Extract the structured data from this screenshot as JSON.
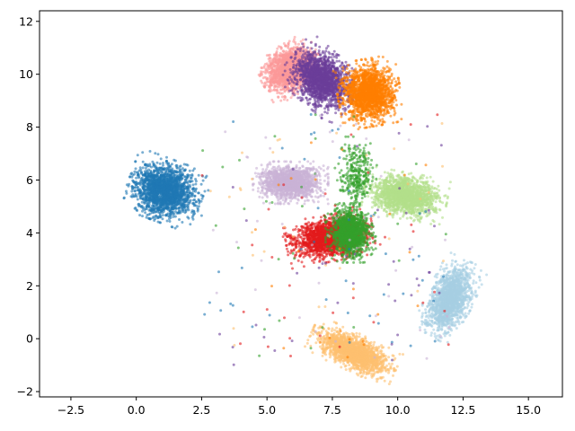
{
  "chart_data": {
    "type": "scatter",
    "title": "",
    "xlabel": "",
    "ylabel": "",
    "xlim": [
      -3.7,
      16.3
    ],
    "ylim": [
      -2.2,
      12.4
    ],
    "grid": false,
    "legend": "none",
    "x_ticks": [
      -2.5,
      0.0,
      2.5,
      5.0,
      7.5,
      10.0,
      12.5,
      15.0
    ],
    "x_tick_labels": [
      "−2.5",
      "0.0",
      "2.5",
      "5.0",
      "7.5",
      "10.0",
      "12.5",
      "15.0"
    ],
    "y_ticks": [
      -2,
      0,
      2,
      4,
      6,
      8,
      10,
      12
    ],
    "y_tick_labels": [
      "−2",
      "0",
      "2",
      "4",
      "6",
      "8",
      "10",
      "12"
    ],
    "clusters": [
      {
        "color": "#fb9a99",
        "center": [
          5.9,
          10.2
        ],
        "spread": [
          0.75,
          0.6
        ],
        "rotation": 30,
        "count": 1800
      },
      {
        "color": "#6a3d9a",
        "center": [
          7.1,
          9.8
        ],
        "spread": [
          0.7,
          0.9
        ],
        "rotation": 50,
        "count": 1800
      },
      {
        "color": "#ff7f00",
        "center": [
          8.9,
          9.3
        ],
        "spread": [
          0.75,
          0.8
        ],
        "rotation": 10,
        "count": 1800
      },
      {
        "color": "#cab2d6",
        "center": [
          5.9,
          5.9
        ],
        "spread": [
          0.9,
          0.5
        ],
        "rotation": 0,
        "count": 1500
      },
      {
        "color": "#b2df8a",
        "center": [
          10.3,
          5.4
        ],
        "spread": [
          1.0,
          0.55
        ],
        "rotation": -10,
        "count": 1700
      },
      {
        "color": "#1f78b4",
        "center": [
          1.1,
          5.6
        ],
        "spread": [
          0.9,
          0.75
        ],
        "rotation": -20,
        "count": 2000
      },
      {
        "color": "#e31a1c",
        "center": [
          7.4,
          3.8
        ],
        "spread": [
          1.05,
          0.55
        ],
        "rotation": 10,
        "count": 2000
      },
      {
        "color": "#33a02c",
        "center": [
          8.2,
          4.0
        ],
        "spread": [
          0.6,
          0.7
        ],
        "rotation": 0,
        "count": 1300
      },
      {
        "color": "#33a02c",
        "center": [
          8.4,
          6.2
        ],
        "spread": [
          0.5,
          0.9
        ],
        "rotation": 0,
        "count": 300
      },
      {
        "color": "#a6cee3",
        "center": [
          12.0,
          1.5
        ],
        "spread": [
          0.55,
          1.0
        ],
        "rotation": -25,
        "count": 1600
      },
      {
        "color": "#fdbf6f",
        "center": [
          8.3,
          -0.5
        ],
        "spread": [
          1.1,
          0.45
        ],
        "rotation": -25,
        "count": 1800
      }
    ],
    "outlier_colors": [
      "#6a3d9a",
      "#33a02c",
      "#e31a1c",
      "#fdbf6f",
      "#cab2d6",
      "#1f78b4",
      "#ff7f00"
    ]
  }
}
